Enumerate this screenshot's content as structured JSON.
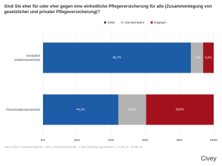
{
  "chart_data": {
    "type": "stacked-barh",
    "title": "Sind Sie eher für oder eher gegen eine einheitliche Pflegeversicherung für alle (Zusammenlegung von gesetzlicher und privater Pflegeversicherung)?",
    "categories": [
      "Gesetzlich Krankenversicherte",
      "Privat Krankenversicherte"
    ],
    "series": [
      {
        "name": "Dafür",
        "color": "#1d5ca6",
        "values": [
          86.7,
          44.2
        ],
        "value_labels": [
          "86,7%",
          "44,2%"
        ]
      },
      {
        "name": "Unentschieden",
        "color": "#b3b3b3",
        "values": [
          7.1,
          16.2
        ],
        "value_labels": [
          "7,1%",
          "16,2%"
        ]
      },
      {
        "name": "Dagegen",
        "color": "#a3121c",
        "values": [
          6.2,
          39.6
        ],
        "value_labels": [
          "6,2%",
          "39,6%"
        ]
      }
    ],
    "xlim": [
      0,
      100
    ],
    "xticks": [
      {
        "value": 0,
        "label": "0%"
      },
      {
        "value": 20,
        "label": "20%"
      },
      {
        "value": 40,
        "label": "40%"
      },
      {
        "value": 60,
        "label": "60%"
      },
      {
        "value": 80,
        "label": "80%"
      },
      {
        "value": 100,
        "label": "100%"
      }
    ],
    "grid": true,
    "footnote": "Stat. Fehler Gesamtergebnis: 3,5% | Stichprobengröße: 2.504 | Befragungszeitraum: 17.06.24 - 18.06.24",
    "brand": "Civey"
  }
}
